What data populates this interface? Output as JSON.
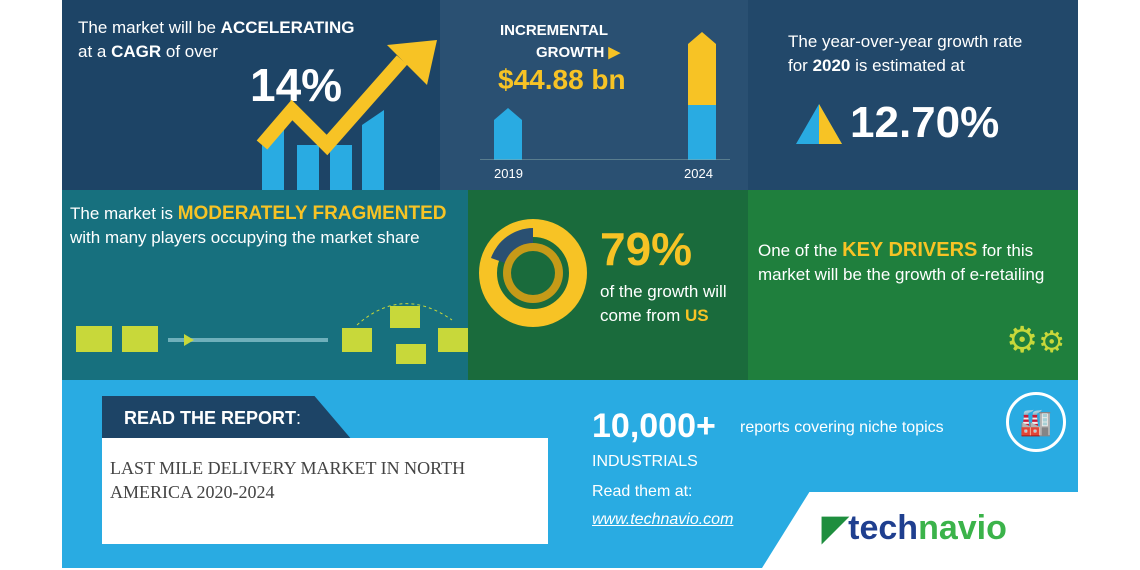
{
  "cagr": {
    "line1_pre": "The market will be ",
    "line1_bold": "ACCELERATING",
    "line2_pre": "at a ",
    "line2_bold": "CAGR",
    "line2_post": " of over",
    "value": "14%"
  },
  "incremental": {
    "label1": "INCREMENTAL",
    "label2": "GROWTH",
    "value": "$44.88 bn",
    "year_start": "2019",
    "year_end": "2024"
  },
  "yoy": {
    "line1": "The year-over-year growth rate",
    "line2_pre": "for ",
    "line2_bold": "2020",
    "line2_post": " is estimated at",
    "value": "12.70%"
  },
  "fragment": {
    "pre": "The market is ",
    "bold": "MODERATELY FRAGMENTED",
    "rest": "with many players occupying the market share"
  },
  "region": {
    "value": "79%",
    "line1": "of the growth will",
    "line2_pre": "come from ",
    "line2_bold": "US",
    "share_percent": 79
  },
  "drivers": {
    "pre": "One of the ",
    "bold": "KEY DRIVERS",
    "post": " for this market will be the growth of e-retailing"
  },
  "report": {
    "heading": "READ THE REPORT",
    "colon": ":",
    "title": "LAST MILE DELIVERY MARKET IN NORTH AMERICA 2020-2024"
  },
  "promo": {
    "count": "10,000+",
    "count_text": "reports covering niche topics",
    "category": "INDUSTRIALS",
    "read_at": "Read them at:",
    "url": "www.technavio.com"
  },
  "brand": {
    "logo_a": "tech",
    "logo_b": "navio"
  },
  "colors": {
    "navy": "#1d4466",
    "teal": "#17707e",
    "green": "#1f7f3d",
    "blue": "#29abe2",
    "yellow": "#f7c325"
  }
}
